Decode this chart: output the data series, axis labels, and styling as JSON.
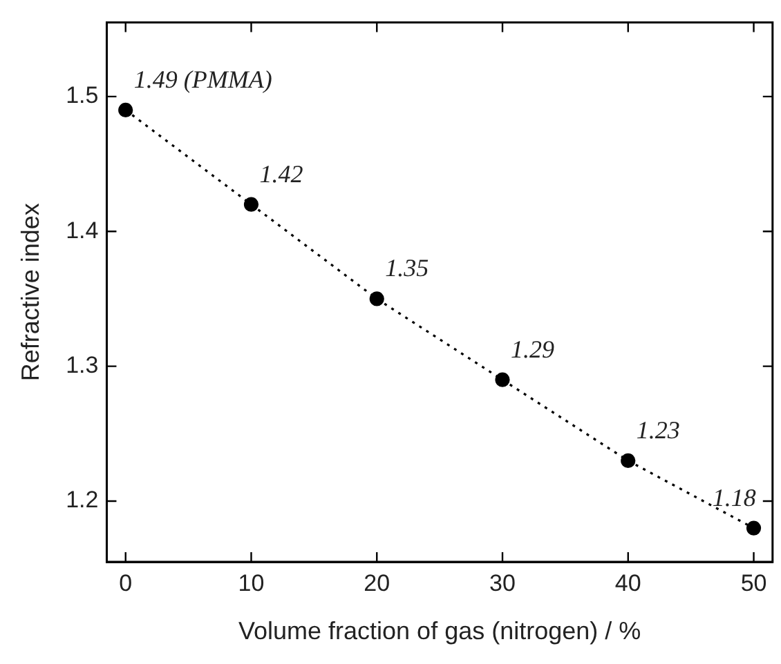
{
  "chart_data": {
    "type": "scatter",
    "xlabel": "Volume fraction of gas (nitrogen) / %",
    "ylabel": "Refractive index",
    "x": [
      0,
      10,
      20,
      30,
      40,
      50
    ],
    "series": [
      {
        "type": "line",
        "color": "#000000",
        "values": [
          1.49,
          1.42,
          1.35,
          1.29,
          1.23,
          1.18
        ],
        "value_labels": [
          "1.49 (PMMA)",
          "1.42",
          "1.35",
          "1.29",
          "1.23",
          "1.18"
        ],
        "marker": "circle",
        "line_style": "dotted"
      }
    ],
    "xlim": [
      -1.5,
      51.5
    ],
    "xticks": [
      0,
      10,
      20,
      30,
      40,
      50
    ],
    "ylim": [
      1.155,
      1.555
    ],
    "yticks": [
      1.2,
      1.3,
      1.4,
      1.5
    ],
    "grid": false,
    "legend": false
  }
}
